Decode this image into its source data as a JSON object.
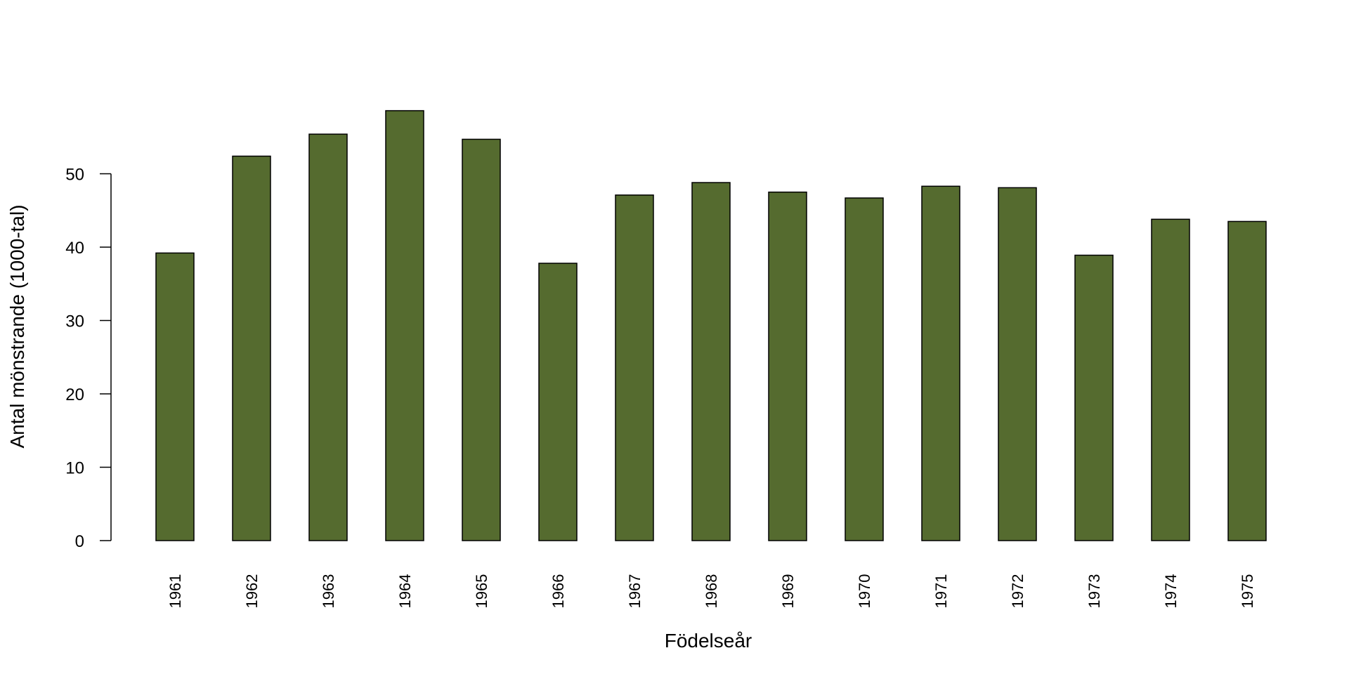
{
  "chart_data": {
    "type": "bar",
    "title": "",
    "xlabel": "Födelseår",
    "ylabel": "Antal mönstrande (1000-tal)",
    "categories": [
      "1961",
      "1962",
      "1963",
      "1964",
      "1965",
      "1966",
      "1967",
      "1968",
      "1969",
      "1970",
      "1971",
      "1972",
      "1973",
      "1974",
      "1975"
    ],
    "values": [
      39.2,
      52.4,
      55.4,
      58.6,
      54.7,
      37.8,
      47.1,
      48.8,
      47.5,
      46.7,
      48.3,
      48.1,
      38.9,
      43.8,
      43.5
    ],
    "yticks": [
      0,
      10,
      20,
      30,
      40,
      50
    ],
    "ylim": [
      0,
      60
    ],
    "bar_color": "#556b2f",
    "bar_outline": "#000000",
    "grid": false,
    "legend": "none"
  }
}
